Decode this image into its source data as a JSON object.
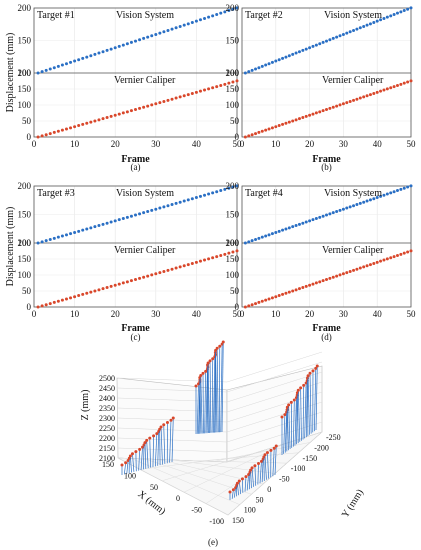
{
  "chart_data": [
    {
      "type": "scatter",
      "target": "Target #1",
      "panel_label": "(a)",
      "xlabel": "Frame",
      "ylabel": "Displacement (mm)",
      "xlim": [
        0,
        50
      ],
      "x_ticks": [
        "0",
        "10",
        "20",
        "30",
        "40",
        "50"
      ],
      "ylim": [
        0,
        200
      ],
      "y_ticks": [
        "0",
        "50",
        "100",
        "150",
        "200"
      ],
      "y_ticks_upper": [
        "100",
        "150",
        "200"
      ],
      "series": [
        {
          "name": "Vision System",
          "color": "#2a6fc4",
          "x_start": 1,
          "x_step": 1,
          "values": [
            0,
            3.6,
            7.2,
            10.7,
            14.3,
            17.9,
            21.5,
            25,
            28.6,
            32.2,
            35.8,
            39.4,
            42.9,
            46.5,
            50.1,
            53.7,
            57.3,
            60.8,
            64.4,
            68,
            71.6,
            75.2,
            78.7,
            82.3,
            85.9,
            89.5,
            93.1,
            96.6,
            100.2,
            103.8,
            107.4,
            110.9,
            114.5,
            118.1,
            121.7,
            125.3,
            128.8,
            132.4,
            136,
            139.6,
            143.2,
            146.7,
            150.3,
            153.9,
            157.5,
            161.1,
            164.6,
            168.2,
            171.8,
            175.4
          ]
        },
        {
          "name": "Vernier Caliper",
          "color": "#d9472b",
          "x_start": 1,
          "x_step": 1,
          "values": [
            0,
            3.6,
            7.2,
            10.7,
            14.3,
            17.9,
            21.5,
            25,
            28.6,
            32.2,
            35.8,
            39.4,
            42.9,
            46.5,
            50.1,
            53.7,
            57.3,
            60.8,
            64.4,
            68,
            71.6,
            75.2,
            78.7,
            82.3,
            85.9,
            89.5,
            93.1,
            96.6,
            100.2,
            103.8,
            107.4,
            110.9,
            114.5,
            118.1,
            121.7,
            125.3,
            128.8,
            132.4,
            136,
            139.6,
            143.2,
            146.7,
            150.3,
            153.9,
            157.5,
            161.1,
            164.6,
            168.2,
            171.8,
            175.4
          ]
        }
      ]
    },
    {
      "type": "scatter",
      "target": "Target #2",
      "panel_label": "(b)",
      "xlabel": "Frame",
      "ylabel": "",
      "xlim": [
        0,
        50
      ],
      "x_ticks": [
        "0",
        "10",
        "20",
        "30",
        "40",
        "50"
      ],
      "ylim": [
        0,
        200
      ],
      "y_ticks": [
        "0",
        "50",
        "100",
        "150",
        "200"
      ],
      "y_ticks_upper": [
        "100",
        "150",
        "200"
      ],
      "series": [
        {
          "name": "Vision System",
          "color": "#2a6fc4",
          "x_start": 1,
          "x_step": 1,
          "values": [
            0,
            3.6,
            7.2,
            10.7,
            14.3,
            17.9,
            21.5,
            25,
            28.6,
            32.2,
            35.8,
            39.4,
            42.9,
            46.5,
            50.1,
            53.7,
            57.3,
            60.8,
            64.4,
            68,
            71.6,
            75.2,
            78.7,
            82.3,
            85.9,
            89.5,
            93.1,
            96.6,
            100.2,
            103.8,
            107.4,
            110.9,
            114.5,
            118.1,
            121.7,
            125.3,
            128.8,
            132.4,
            136,
            139.6,
            143.2,
            146.7,
            150.3,
            153.9,
            157.5,
            161.1,
            164.6,
            168.2,
            171.8,
            175.4
          ]
        },
        {
          "name": "Vernier Caliper",
          "color": "#d9472b",
          "x_start": 1,
          "x_step": 1,
          "values": [
            0,
            3.6,
            7.2,
            10.7,
            14.3,
            17.9,
            21.5,
            25,
            28.6,
            32.2,
            35.8,
            39.4,
            42.9,
            46.5,
            50.1,
            53.7,
            57.3,
            60.8,
            64.4,
            68,
            71.6,
            75.2,
            78.7,
            82.3,
            85.9,
            89.5,
            93.1,
            96.6,
            100.2,
            103.8,
            107.4,
            110.9,
            114.5,
            118.1,
            121.7,
            125.3,
            128.8,
            132.4,
            136,
            139.6,
            143.2,
            146.7,
            150.3,
            153.9,
            157.5,
            161.1,
            164.6,
            168.2,
            171.8,
            175.4
          ]
        }
      ]
    },
    {
      "type": "scatter",
      "target": "Target #3",
      "panel_label": "(c)",
      "xlabel": "Frame",
      "ylabel": "Displacement (mm)",
      "xlim": [
        0,
        50
      ],
      "x_ticks": [
        "0",
        "10",
        "20",
        "30",
        "40",
        "50"
      ],
      "ylim": [
        0,
        200
      ],
      "y_ticks": [
        "0",
        "50",
        "100",
        "150",
        "200"
      ],
      "y_ticks_upper": [
        "100",
        "150",
        "200"
      ],
      "series": [
        {
          "name": "Vision System",
          "color": "#2a6fc4",
          "x_start": 1,
          "x_step": 1,
          "values": [
            0,
            3.6,
            7.2,
            10.7,
            14.3,
            17.9,
            21.5,
            25,
            28.6,
            32.2,
            35.8,
            39.4,
            42.9,
            46.5,
            50.1,
            53.7,
            57.3,
            60.8,
            64.4,
            68,
            71.6,
            75.2,
            78.7,
            82.3,
            85.9,
            89.5,
            93.1,
            96.6,
            100.2,
            103.8,
            107.4,
            110.9,
            114.5,
            118.1,
            121.7,
            125.3,
            128.8,
            132.4,
            136,
            139.6,
            143.2,
            146.7,
            150.3,
            153.9,
            157.5,
            161.1,
            164.6,
            168.2,
            171.8,
            175.4
          ]
        },
        {
          "name": "Vernier Caliper",
          "color": "#d9472b",
          "x_start": 1,
          "x_step": 1,
          "values": [
            0,
            3.6,
            7.2,
            10.7,
            14.3,
            17.9,
            21.5,
            25,
            28.6,
            32.2,
            35.8,
            39.4,
            42.9,
            46.5,
            50.1,
            53.7,
            57.3,
            60.8,
            64.4,
            68,
            71.6,
            75.2,
            78.7,
            82.3,
            85.9,
            89.5,
            93.1,
            96.6,
            100.2,
            103.8,
            107.4,
            110.9,
            114.5,
            118.1,
            121.7,
            125.3,
            128.8,
            132.4,
            136,
            139.6,
            143.2,
            146.7,
            150.3,
            153.9,
            157.5,
            161.1,
            164.6,
            168.2,
            171.8,
            175.4
          ]
        }
      ]
    },
    {
      "type": "scatter",
      "target": "Target #4",
      "panel_label": "(d)",
      "xlabel": "Frame",
      "ylabel": "",
      "xlim": [
        0,
        50
      ],
      "x_ticks": [
        "0",
        "10",
        "20",
        "30",
        "40",
        "50"
      ],
      "ylim": [
        0,
        200
      ],
      "y_ticks": [
        "0",
        "50",
        "100",
        "150",
        "200"
      ],
      "y_ticks_upper": [
        "100",
        "150",
        "200"
      ],
      "series": [
        {
          "name": "Vision System",
          "color": "#2a6fc4",
          "x_start": 1,
          "x_step": 1,
          "values": [
            0,
            3.6,
            7.2,
            10.7,
            14.3,
            17.9,
            21.5,
            25,
            28.6,
            32.2,
            35.8,
            39.4,
            42.9,
            46.5,
            50.1,
            53.7,
            57.3,
            60.8,
            64.4,
            68,
            71.6,
            75.2,
            78.7,
            82.3,
            85.9,
            89.5,
            93.1,
            96.6,
            100.2,
            103.8,
            107.4,
            110.9,
            114.5,
            118.1,
            121.7,
            125.3,
            128.8,
            132.4,
            136,
            139.6,
            143.2,
            146.7,
            150.3,
            153.9,
            157.5,
            161.1,
            164.6,
            168.2,
            171.8,
            175.4
          ]
        },
        {
          "name": "Vernier Caliper",
          "color": "#d9472b",
          "x_start": 1,
          "x_step": 1,
          "values": [
            0,
            3.6,
            7.2,
            10.7,
            14.3,
            17.9,
            21.5,
            25,
            28.6,
            32.2,
            35.8,
            39.4,
            42.9,
            46.5,
            50.1,
            53.7,
            57.3,
            60.8,
            64.4,
            68,
            71.6,
            75.2,
            78.7,
            82.3,
            85.9,
            89.5,
            93.1,
            96.6,
            100.2,
            103.8,
            107.4,
            110.9,
            114.5,
            118.1,
            121.7,
            125.3,
            128.8,
            132.4,
            136,
            139.6,
            143.2,
            146.7,
            150.3,
            153.9,
            157.5,
            161.1,
            164.6,
            168.2,
            171.8,
            175.4
          ]
        }
      ]
    },
    {
      "type": "scatter3d",
      "panel_label": "(e)",
      "xlabel": "X (mm)",
      "ylabel": "Y (mm)",
      "zlabel": "Z (mm)",
      "x_ticks": [
        "150",
        "100",
        "50",
        "0",
        "-50",
        "-100"
      ],
      "y_ticks": [
        "150",
        "100",
        "50",
        "0",
        "-50",
        "-100",
        "-150",
        "-200",
        "-250"
      ],
      "z_ticks": [
        "2100",
        "2150",
        "2200",
        "2250",
        "2300",
        "2350",
        "2400",
        "2450",
        "2500"
      ],
      "zlim": [
        2100,
        2500
      ],
      "series": [
        {
          "name": "Target #1",
          "color": "#d9472b",
          "stem_color": "#2a6fc4",
          "x_from": 150,
          "x_to": 75,
          "y": 150,
          "z_from": 2165,
          "z_to": 2245
        },
        {
          "name": "Target #2",
          "color": "#d9472b",
          "stem_color": "#2a6fc4",
          "x_from": 150,
          "x_to": 100,
          "y": -150,
          "z_from": 2395,
          "z_to": 2465
        },
        {
          "name": "Target #3",
          "color": "#d9472b",
          "stem_color": "#2a6fc4",
          "x_from": -100,
          "x_to": -60,
          "y": 150,
          "z_from": 2195,
          "z_to": 2255
        },
        {
          "name": "Target #4",
          "color": "#d9472b",
          "stem_color": "#2a6fc4",
          "x_from": -100,
          "x_to": -100,
          "y_from": -150,
          "y_to": -235,
          "z_from": 2295,
          "z_to": 2375
        }
      ]
    }
  ]
}
